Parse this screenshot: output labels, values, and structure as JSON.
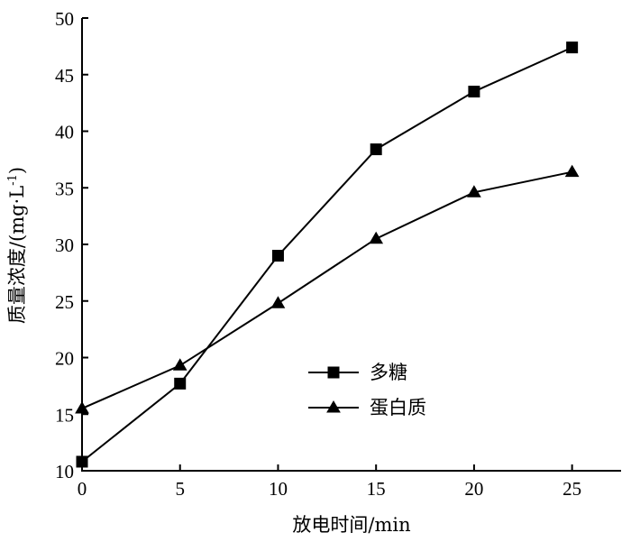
{
  "chart_data": {
    "type": "line",
    "xlabel": "放电时间/min",
    "ylabel": "质量浓度/(mg·L",
    "ylabel_sup": "-1",
    "ylabel_close": ")",
    "xlim": [
      0,
      27.5
    ],
    "ylim": [
      10,
      50
    ],
    "xticks": [
      0,
      5,
      10,
      15,
      20,
      25
    ],
    "yticks": [
      10,
      15,
      20,
      25,
      30,
      35,
      40,
      45,
      50
    ],
    "grid": false,
    "legend_position": "center-right",
    "series": [
      {
        "name": "多糖",
        "marker": "square",
        "x": [
          0,
          5,
          10,
          15,
          20,
          25
        ],
        "y": [
          10.8,
          17.7,
          29.0,
          38.4,
          43.5,
          47.4
        ]
      },
      {
        "name": "蛋白质",
        "marker": "triangle",
        "x": [
          0,
          5,
          10,
          15,
          20,
          25
        ],
        "y": [
          15.5,
          19.3,
          24.8,
          30.5,
          34.6,
          36.4
        ]
      }
    ]
  }
}
